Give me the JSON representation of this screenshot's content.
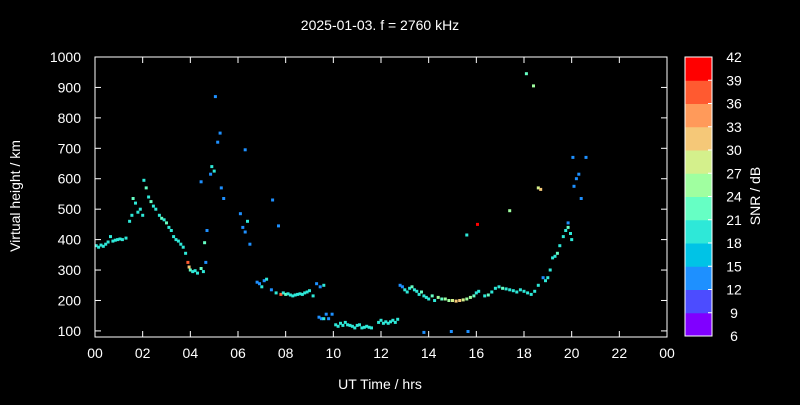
{
  "chart_data": {
    "type": "scatter",
    "title": "2025-01-03. f = 2760 kHz",
    "xlabel": "UT Time / hrs",
    "ylabel": "Virtual height / km",
    "colorbar_label": "SNR / dB",
    "xlim": [
      0,
      24
    ],
    "ylim": [
      80,
      1000
    ],
    "x_ticks": [
      "00",
      "02",
      "04",
      "06",
      "08",
      "10",
      "12",
      "14",
      "16",
      "18",
      "20",
      "22",
      "00"
    ],
    "y_ticks": [
      "100",
      "200",
      "300",
      "400",
      "500",
      "600",
      "700",
      "800",
      "900",
      "1000"
    ],
    "colorbar_ticks": [
      "6",
      "9",
      "12",
      "15",
      "18",
      "21",
      "24",
      "27",
      "30",
      "33",
      "36",
      "39",
      "42"
    ],
    "colorbar_range": [
      6,
      42
    ],
    "colorbar_colors": [
      "#8000ff",
      "#4c4cff",
      "#1e90ff",
      "#00c3e6",
      "#2ee8d8",
      "#66ffc4",
      "#a0ffa0",
      "#d4f08c",
      "#f5c878",
      "#ff9a5a",
      "#ff5a30",
      "#ff0000"
    ],
    "grid": false,
    "points": [
      [
        0.05,
        380,
        20
      ],
      [
        0.15,
        375,
        18
      ],
      [
        0.25,
        382,
        19
      ],
      [
        0.35,
        378,
        20
      ],
      [
        0.45,
        385,
        19
      ],
      [
        0.55,
        392,
        20
      ],
      [
        0.65,
        410,
        18
      ],
      [
        0.75,
        395,
        19
      ],
      [
        0.85,
        398,
        20
      ],
      [
        0.95,
        400,
        19
      ],
      [
        1.05,
        402,
        20
      ],
      [
        1.15,
        400,
        18
      ],
      [
        1.3,
        405,
        19
      ],
      [
        1.45,
        460,
        20
      ],
      [
        1.55,
        480,
        18
      ],
      [
        1.6,
        535,
        22
      ],
      [
        1.7,
        520,
        20
      ],
      [
        1.8,
        490,
        19
      ],
      [
        1.9,
        500,
        20
      ],
      [
        2.0,
        480,
        18
      ],
      [
        2.05,
        595,
        20
      ],
      [
        2.15,
        570,
        21
      ],
      [
        2.25,
        540,
        20
      ],
      [
        2.35,
        525,
        22
      ],
      [
        2.45,
        510,
        20
      ],
      [
        2.55,
        500,
        19
      ],
      [
        2.7,
        480,
        20
      ],
      [
        2.8,
        470,
        22
      ],
      [
        2.9,
        465,
        20
      ],
      [
        3.0,
        455,
        21
      ],
      [
        3.1,
        440,
        20
      ],
      [
        3.2,
        430,
        18
      ],
      [
        3.3,
        410,
        20
      ],
      [
        3.4,
        400,
        19
      ],
      [
        3.5,
        395,
        20
      ],
      [
        3.6,
        385,
        18
      ],
      [
        3.7,
        375,
        19
      ],
      [
        3.8,
        355,
        20
      ],
      [
        3.9,
        325,
        36
      ],
      [
        3.95,
        310,
        30
      ],
      [
        4.0,
        300,
        22
      ],
      [
        4.1,
        295,
        20
      ],
      [
        4.2,
        298,
        19
      ],
      [
        4.3,
        290,
        20
      ],
      [
        4.45,
        305,
        22
      ],
      [
        4.55,
        295,
        20
      ],
      [
        4.65,
        325,
        14
      ],
      [
        4.6,
        390,
        22
      ],
      [
        4.45,
        590,
        12
      ],
      [
        4.7,
        430,
        14
      ],
      [
        4.85,
        615,
        12
      ],
      [
        4.9,
        640,
        18
      ],
      [
        5.0,
        625,
        20
      ],
      [
        5.05,
        870,
        12
      ],
      [
        5.15,
        720,
        12
      ],
      [
        5.25,
        750,
        14
      ],
      [
        5.3,
        570,
        12
      ],
      [
        5.4,
        535,
        14
      ],
      [
        6.1,
        485,
        14
      ],
      [
        6.2,
        440,
        12
      ],
      [
        6.3,
        425,
        14
      ],
      [
        6.3,
        695,
        14
      ],
      [
        6.4,
        460,
        18
      ],
      [
        6.5,
        385,
        14
      ],
      [
        6.8,
        260,
        12
      ],
      [
        6.9,
        255,
        14
      ],
      [
        7.0,
        245,
        20
      ],
      [
        7.1,
        265,
        14
      ],
      [
        7.2,
        270,
        18
      ],
      [
        7.4,
        235,
        14
      ],
      [
        7.45,
        530,
        12
      ],
      [
        7.7,
        445,
        12
      ],
      [
        7.6,
        225,
        20
      ],
      [
        7.8,
        220,
        36
      ],
      [
        7.9,
        225,
        20
      ],
      [
        8.0,
        220,
        22
      ],
      [
        8.1,
        222,
        20
      ],
      [
        8.2,
        218,
        19
      ],
      [
        8.3,
        215,
        20
      ],
      [
        8.4,
        218,
        18
      ],
      [
        8.5,
        220,
        20
      ],
      [
        8.6,
        222,
        19
      ],
      [
        8.7,
        220,
        20
      ],
      [
        8.8,
        225,
        18
      ],
      [
        8.9,
        228,
        20
      ],
      [
        9.0,
        232,
        19
      ],
      [
        9.15,
        215,
        20
      ],
      [
        9.3,
        255,
        12
      ],
      [
        9.45,
        245,
        14
      ],
      [
        9.6,
        250,
        18
      ],
      [
        9.4,
        145,
        12
      ],
      [
        9.5,
        140,
        14
      ],
      [
        9.6,
        140,
        18
      ],
      [
        9.7,
        155,
        12
      ],
      [
        9.8,
        140,
        14
      ],
      [
        9.95,
        155,
        12
      ],
      [
        10.1,
        120,
        18
      ],
      [
        10.2,
        115,
        20
      ],
      [
        10.3,
        125,
        18
      ],
      [
        10.4,
        118,
        20
      ],
      [
        10.5,
        128,
        19
      ],
      [
        10.6,
        120,
        20
      ],
      [
        10.7,
        118,
        18
      ],
      [
        10.8,
        115,
        20
      ],
      [
        10.9,
        110,
        18
      ],
      [
        11.0,
        118,
        19
      ],
      [
        11.1,
        120,
        20
      ],
      [
        11.2,
        110,
        18
      ],
      [
        11.3,
        112,
        20
      ],
      [
        11.4,
        115,
        19
      ],
      [
        11.5,
        112,
        20
      ],
      [
        11.6,
        110,
        18
      ],
      [
        11.9,
        128,
        20
      ],
      [
        12.0,
        135,
        18
      ],
      [
        12.1,
        125,
        20
      ],
      [
        12.2,
        130,
        19
      ],
      [
        12.3,
        125,
        20
      ],
      [
        12.4,
        130,
        18
      ],
      [
        12.5,
        135,
        20
      ],
      [
        12.6,
        128,
        19
      ],
      [
        12.7,
        138,
        20
      ],
      [
        12.8,
        250,
        12
      ],
      [
        12.9,
        245,
        14
      ],
      [
        13.0,
        235,
        20
      ],
      [
        13.1,
        228,
        18
      ],
      [
        13.2,
        240,
        20
      ],
      [
        13.3,
        245,
        22
      ],
      [
        13.4,
        235,
        20
      ],
      [
        13.5,
        230,
        18
      ],
      [
        13.6,
        220,
        20
      ],
      [
        13.7,
        228,
        22
      ],
      [
        13.8,
        215,
        20
      ],
      [
        13.9,
        210,
        18
      ],
      [
        14.0,
        205,
        20
      ],
      [
        14.15,
        215,
        22
      ],
      [
        14.25,
        200,
        20
      ],
      [
        14.4,
        210,
        26
      ],
      [
        14.55,
        205,
        22
      ],
      [
        14.7,
        205,
        24
      ],
      [
        14.85,
        200,
        26
      ],
      [
        15.0,
        200,
        28
      ],
      [
        15.15,
        198,
        30
      ],
      [
        15.3,
        200,
        30
      ],
      [
        15.45,
        202,
        28
      ],
      [
        15.6,
        205,
        26
      ],
      [
        15.75,
        210,
        24
      ],
      [
        15.9,
        215,
        22
      ],
      [
        16.0,
        225,
        20
      ],
      [
        16.1,
        230,
        18
      ],
      [
        16.35,
        215,
        20
      ],
      [
        16.5,
        218,
        22
      ],
      [
        16.65,
        228,
        20
      ],
      [
        16.8,
        240,
        18
      ],
      [
        16.95,
        245,
        20
      ],
      [
        17.1,
        240,
        22
      ],
      [
        17.25,
        238,
        20
      ],
      [
        17.4,
        235,
        18
      ],
      [
        17.55,
        232,
        20
      ],
      [
        17.7,
        228,
        19
      ],
      [
        17.85,
        235,
        20
      ],
      [
        18.0,
        230,
        18
      ],
      [
        18.15,
        225,
        20
      ],
      [
        18.3,
        220,
        19
      ],
      [
        18.45,
        230,
        20
      ],
      [
        18.6,
        250,
        18
      ],
      [
        18.8,
        275,
        14
      ],
      [
        18.9,
        265,
        20
      ],
      [
        19.0,
        275,
        18
      ],
      [
        19.1,
        300,
        20
      ],
      [
        19.2,
        340,
        18
      ],
      [
        19.3,
        345,
        20
      ],
      [
        19.4,
        355,
        22
      ],
      [
        19.5,
        380,
        20
      ],
      [
        19.65,
        410,
        18
      ],
      [
        19.75,
        430,
        20
      ],
      [
        19.85,
        440,
        22
      ],
      [
        19.95,
        420,
        20
      ],
      [
        19.85,
        455,
        14
      ],
      [
        20.0,
        400,
        20
      ],
      [
        20.05,
        670,
        12
      ],
      [
        20.1,
        575,
        12
      ],
      [
        20.2,
        600,
        12
      ],
      [
        20.3,
        615,
        12
      ],
      [
        20.4,
        535,
        12
      ],
      [
        20.6,
        670,
        12
      ],
      [
        13.8,
        95,
        12
      ],
      [
        14.95,
        98,
        12
      ],
      [
        15.65,
        98,
        12
      ],
      [
        15.6,
        415,
        20
      ],
      [
        16.05,
        450,
        42
      ],
      [
        17.4,
        495,
        24
      ],
      [
        18.1,
        945,
        21
      ],
      [
        18.4,
        905,
        24
      ],
      [
        18.6,
        570,
        28
      ],
      [
        18.7,
        565,
        30
      ]
    ]
  }
}
